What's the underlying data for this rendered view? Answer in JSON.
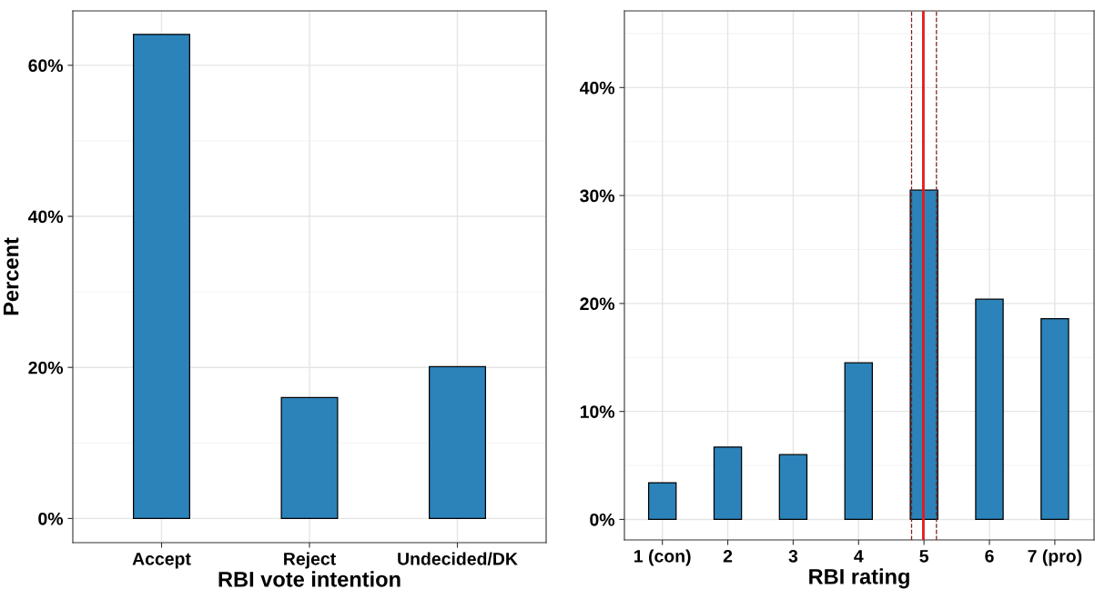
{
  "chart_data": [
    {
      "type": "bar",
      "xlabel": "RBI vote intention",
      "ylabel": "Percent",
      "categories": [
        "Accept",
        "Reject",
        "Undecided/DK"
      ],
      "series": [
        {
          "color": "#2b83ba",
          "values": [
            64.1,
            16.0,
            20.1
          ]
        }
      ],
      "ylim": [
        -3.2,
        67.2
      ],
      "yticks": [
        {
          "value": 0,
          "label": "0%"
        },
        {
          "value": 20,
          "label": "20%"
        },
        {
          "value": 40,
          "label": "40%"
        },
        {
          "value": 60,
          "label": "60%"
        }
      ],
      "grid": true
    },
    {
      "type": "bar",
      "xlabel": "RBI rating",
      "x": [
        1,
        2,
        3,
        4,
        5,
        6,
        7
      ],
      "series": [
        {
          "color": "#2b83ba",
          "values": [
            3.4,
            6.7,
            6.0,
            14.5,
            30.5,
            20.4,
            18.6
          ]
        }
      ],
      "xlim": [
        0.42,
        7.6
      ],
      "xticks": [
        {
          "value": 1,
          "label": "1 (con)"
        },
        2,
        3,
        4,
        5,
        6,
        {
          "value": 7,
          "label": "7 (pro)"
        }
      ],
      "ylim": [
        -1.9,
        47.1
      ],
      "yticks": [
        {
          "value": 0,
          "label": "0%"
        },
        {
          "value": 10,
          "label": "10%"
        },
        {
          "value": 20,
          "label": "20%"
        },
        {
          "value": 30,
          "label": "30%"
        },
        {
          "value": 40,
          "label": "40%"
        }
      ],
      "grid": true,
      "ref_lines": [
        {
          "axis": "x",
          "value": 4.99,
          "color": "#e41a1c",
          "line_style": "solid"
        },
        {
          "axis": "x",
          "value": 4.81,
          "color": "#7f1d1d",
          "line_style": "dashed"
        },
        {
          "axis": "x",
          "value": 5.19,
          "color": "#7f1d1d",
          "line_style": "dashed"
        }
      ]
    }
  ]
}
